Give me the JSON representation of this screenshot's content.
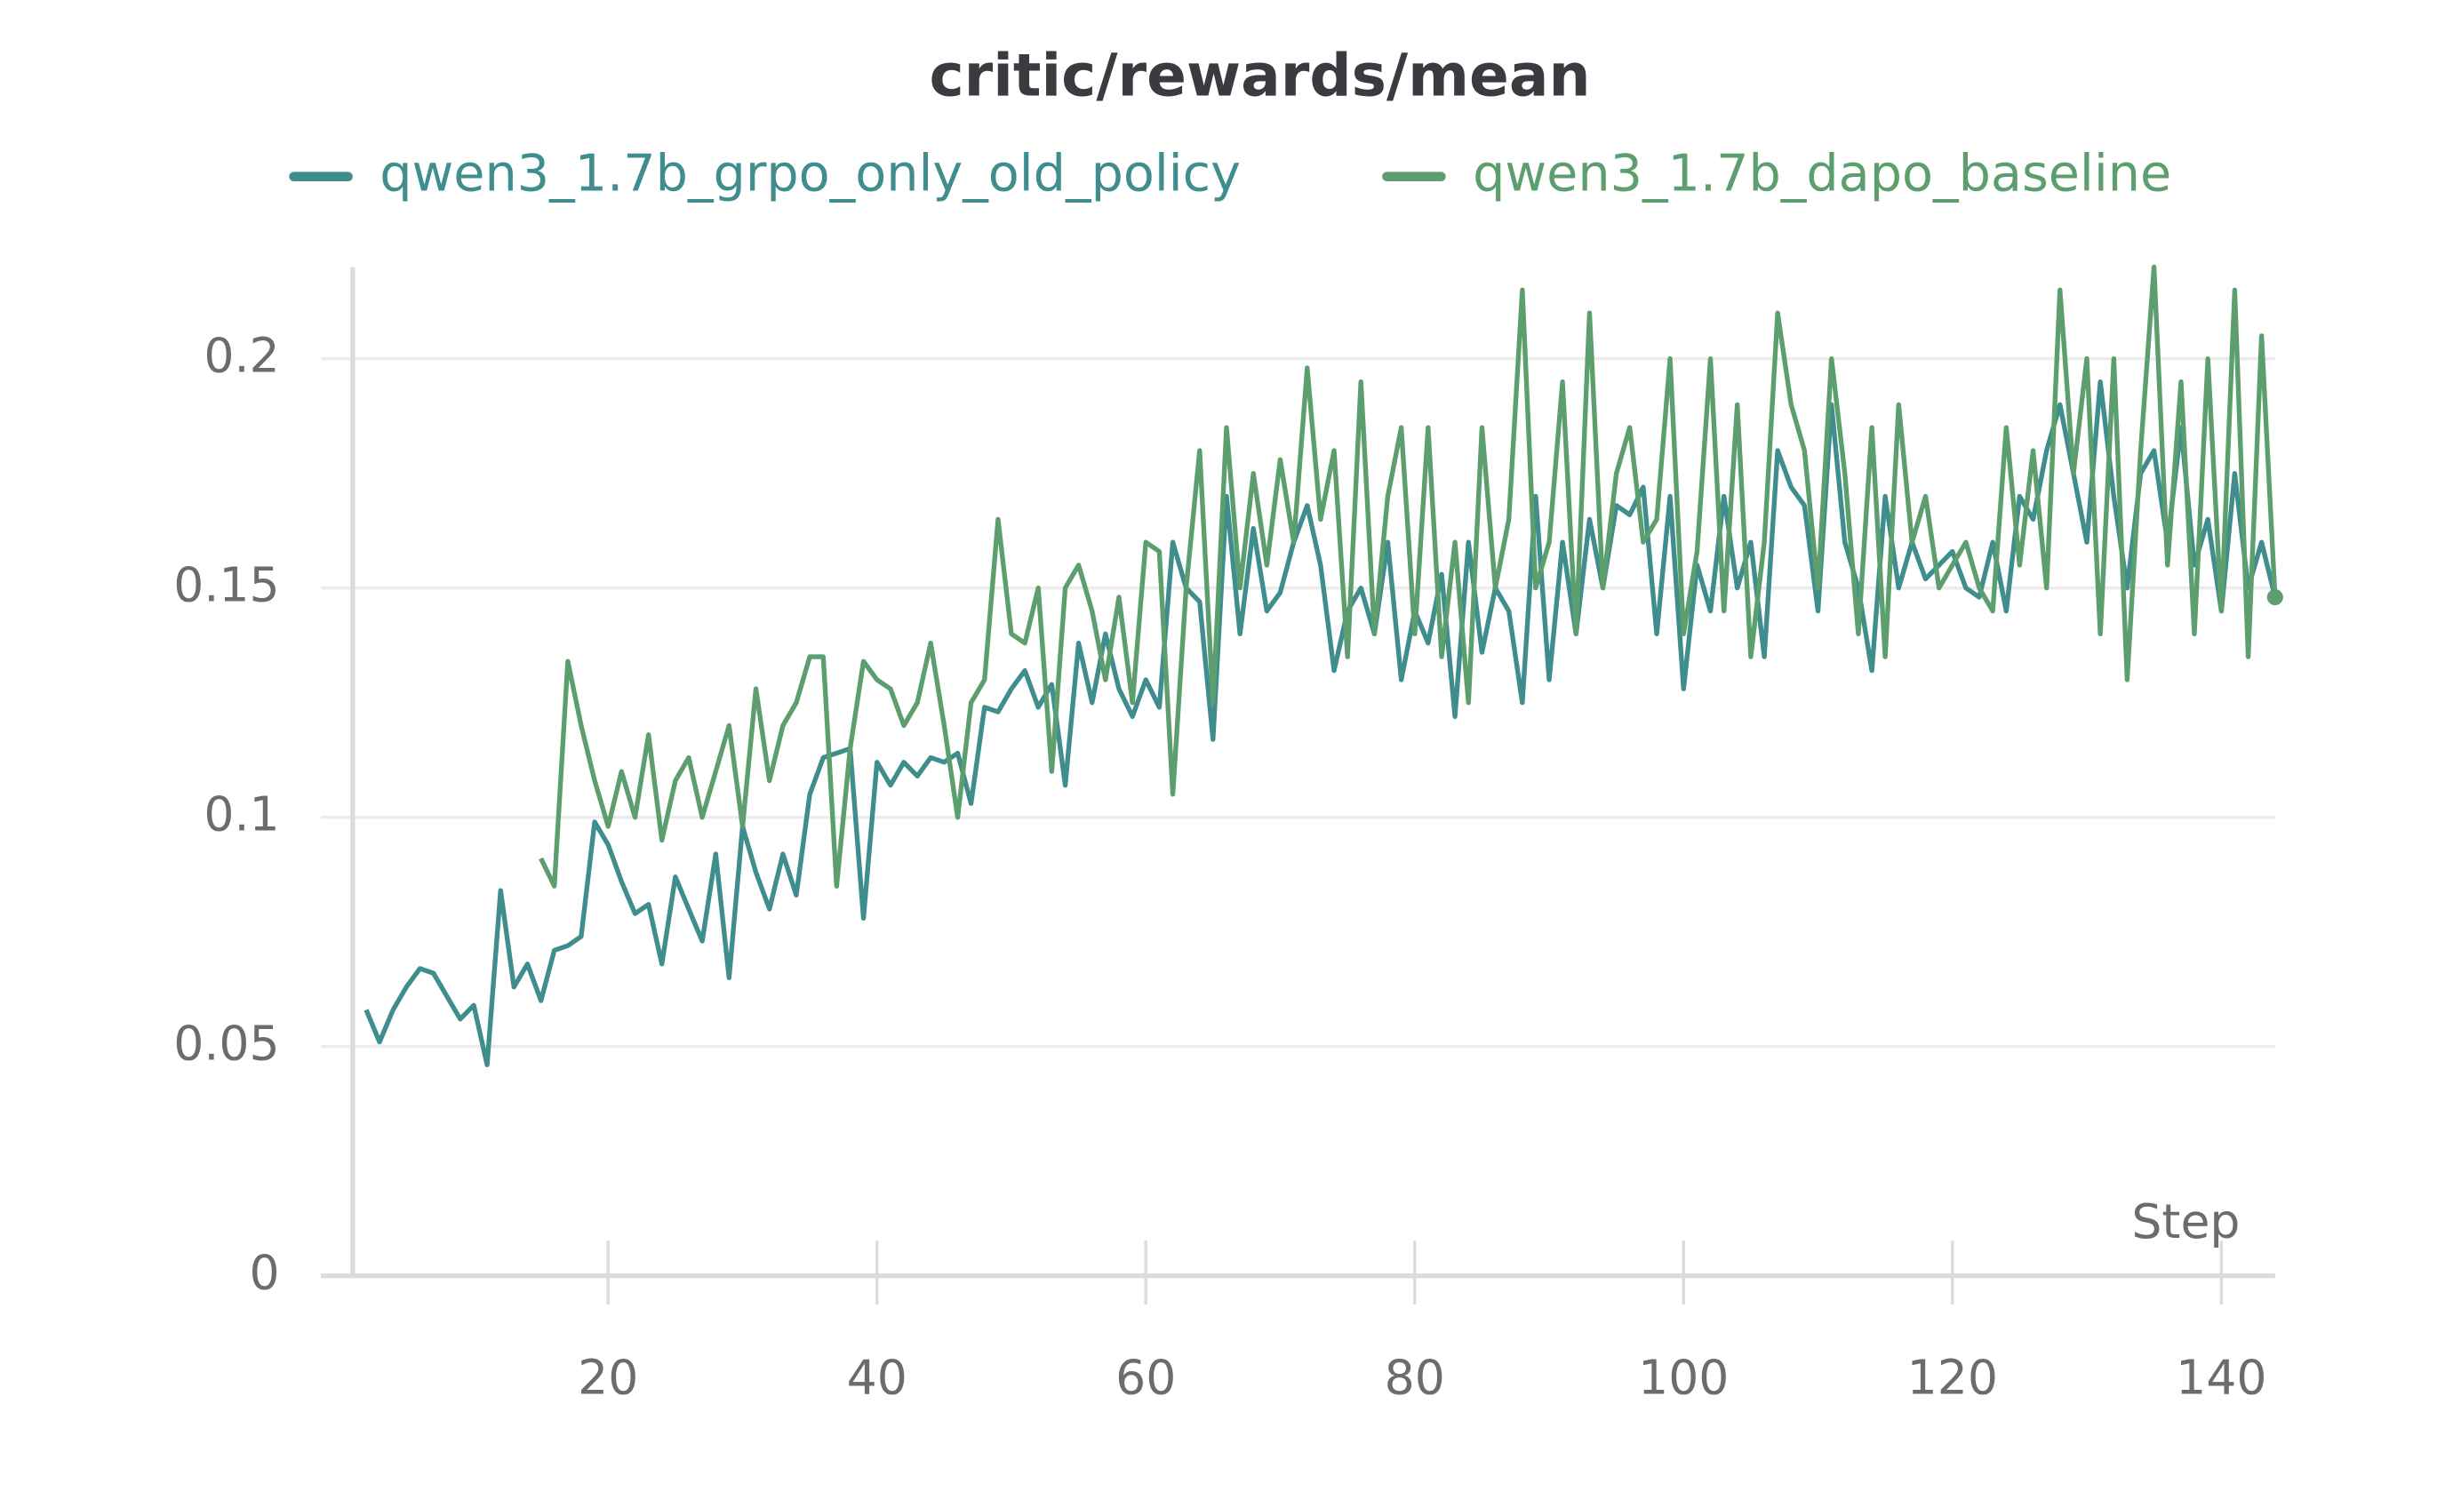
{
  "chart_data": {
    "type": "line",
    "title": "critic/rewards/mean",
    "x_label": "Step",
    "x": [
      2,
      3,
      4,
      5,
      6,
      7,
      8,
      9,
      10,
      11,
      12,
      13,
      14,
      15,
      16,
      17,
      18,
      19,
      20,
      21,
      22,
      23,
      24,
      25,
      26,
      27,
      28,
      29,
      30,
      31,
      32,
      33,
      34,
      35,
      36,
      37,
      38,
      39,
      40,
      41,
      42,
      43,
      44,
      45,
      46,
      47,
      48,
      49,
      50,
      51,
      52,
      53,
      54,
      55,
      56,
      57,
      58,
      59,
      60,
      61,
      62,
      63,
      64,
      65,
      66,
      67,
      68,
      69,
      70,
      71,
      72,
      73,
      74,
      75,
      76,
      77,
      78,
      79,
      80,
      81,
      82,
      83,
      84,
      85,
      86,
      87,
      88,
      89,
      90,
      91,
      92,
      93,
      94,
      95,
      96,
      97,
      98,
      99,
      100,
      101,
      102,
      103,
      104,
      105,
      106,
      107,
      108,
      109,
      110,
      111,
      112,
      113,
      114,
      115,
      116,
      117,
      118,
      119,
      120,
      121,
      122,
      123,
      124,
      125,
      126,
      127,
      128,
      129,
      130,
      131,
      132,
      133,
      134,
      135,
      136,
      137,
      138,
      139,
      140,
      141,
      142,
      143,
      144
    ],
    "series": [
      {
        "name": "qwen3_1.7b_grpo_only_old_policy",
        "color": "#3f8d8c",
        "values": [
          0.058,
          0.051,
          0.058,
          0.063,
          0.067,
          0.066,
          0.061,
          0.056,
          0.059,
          0.046,
          0.084,
          0.063,
          0.068,
          0.06,
          0.071,
          0.072,
          0.074,
          0.099,
          0.094,
          0.086,
          0.079,
          0.081,
          0.068,
          0.087,
          0.08,
          0.073,
          0.092,
          0.065,
          0.098,
          0.088,
          0.08,
          0.092,
          0.083,
          0.105,
          0.113,
          0.114,
          0.115,
          0.078,
          0.112,
          0.107,
          0.112,
          0.109,
          0.113,
          0.112,
          0.114,
          0.103,
          0.124,
          0.123,
          0.128,
          0.132,
          0.124,
          0.129,
          0.107,
          0.138,
          0.125,
          0.14,
          0.128,
          0.122,
          0.13,
          0.124,
          0.16,
          0.15,
          0.147,
          0.117,
          0.17,
          0.14,
          0.163,
          0.145,
          0.149,
          0.16,
          0.168,
          0.155,
          0.132,
          0.145,
          0.15,
          0.14,
          0.16,
          0.13,
          0.145,
          0.138,
          0.153,
          0.122,
          0.16,
          0.136,
          0.15,
          0.145,
          0.125,
          0.17,
          0.13,
          0.16,
          0.14,
          0.165,
          0.15,
          0.168,
          0.166,
          0.172,
          0.14,
          0.17,
          0.128,
          0.155,
          0.145,
          0.17,
          0.15,
          0.16,
          0.135,
          0.18,
          0.172,
          0.168,
          0.145,
          0.19,
          0.16,
          0.15,
          0.132,
          0.17,
          0.15,
          0.16,
          0.152,
          0.155,
          0.158,
          0.15,
          0.148,
          0.16,
          0.145,
          0.17,
          0.165,
          0.18,
          0.19,
          0.175,
          0.16,
          0.195,
          0.17,
          0.15,
          0.175,
          0.18,
          0.16,
          0.185,
          0.155,
          0.165,
          0.145,
          0.175,
          0.15,
          0.16,
          0.148
        ]
      },
      {
        "name": "qwen3_1.7b_dapo_baseline",
        "color": "#5c9e6e",
        "values": [
          null,
          null,
          null,
          null,
          null,
          null,
          null,
          null,
          null,
          null,
          null,
          null,
          null,
          0.091,
          0.085,
          0.134,
          0.12,
          0.108,
          0.098,
          0.11,
          0.1,
          0.118,
          0.095,
          0.108,
          0.113,
          0.1,
          0.11,
          0.12,
          0.098,
          0.128,
          0.108,
          0.12,
          0.125,
          0.135,
          0.135,
          0.085,
          0.115,
          0.134,
          0.13,
          0.128,
          0.12,
          0.125,
          0.138,
          0.12,
          0.1,
          0.125,
          0.13,
          0.165,
          0.14,
          0.138,
          0.15,
          0.11,
          0.15,
          0.155,
          0.145,
          0.13,
          0.148,
          0.125,
          0.16,
          0.158,
          0.105,
          0.15,
          0.18,
          0.125,
          0.185,
          0.15,
          0.175,
          0.155,
          0.178,
          0.16,
          0.198,
          0.165,
          0.18,
          0.135,
          0.195,
          0.14,
          0.17,
          0.185,
          0.14,
          0.185,
          0.135,
          0.16,
          0.125,
          0.185,
          0.15,
          0.165,
          0.215,
          0.15,
          0.16,
          0.195,
          0.14,
          0.21,
          0.15,
          0.175,
          0.185,
          0.16,
          0.165,
          0.2,
          0.14,
          0.158,
          0.2,
          0.145,
          0.19,
          0.135,
          0.16,
          0.21,
          0.19,
          0.18,
          0.15,
          0.2,
          0.175,
          0.14,
          0.185,
          0.135,
          0.19,
          0.16,
          0.17,
          0.15,
          0.155,
          0.16,
          0.15,
          0.145,
          0.185,
          0.155,
          0.18,
          0.15,
          0.215,
          0.175,
          0.2,
          0.14,
          0.2,
          0.13,
          0.18,
          0.22,
          0.155,
          0.195,
          0.14,
          0.2,
          0.145,
          0.215,
          0.135,
          0.205,
          0.148
        ]
      }
    ],
    "xlim": [
      1,
      144
    ],
    "ylim": [
      0,
      0.22
    ],
    "xticks": [
      20,
      40,
      60,
      80,
      100,
      120,
      140
    ],
    "yticks": [
      0,
      0.05,
      0.1,
      0.15,
      0.2
    ],
    "grid": true
  }
}
